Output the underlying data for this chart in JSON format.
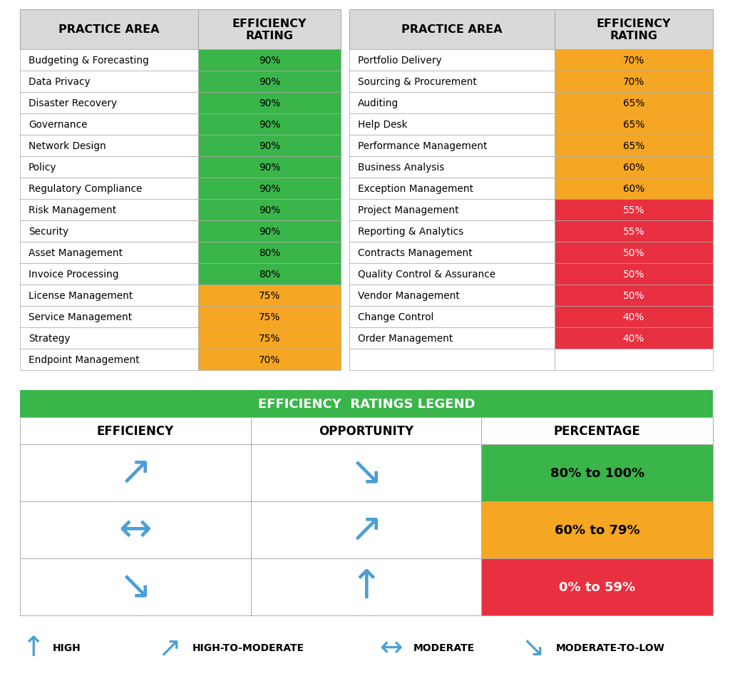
{
  "left_col": [
    [
      "Budgeting & Forecasting",
      "90%",
      "#3ab54a"
    ],
    [
      "Data Privacy",
      "90%",
      "#3ab54a"
    ],
    [
      "Disaster Recovery",
      "90%",
      "#3ab54a"
    ],
    [
      "Governance",
      "90%",
      "#3ab54a"
    ],
    [
      "Network Design",
      "90%",
      "#3ab54a"
    ],
    [
      "Policy",
      "90%",
      "#3ab54a"
    ],
    [
      "Regulatory Compliance",
      "90%",
      "#3ab54a"
    ],
    [
      "Risk Management",
      "90%",
      "#3ab54a"
    ],
    [
      "Security",
      "90%",
      "#3ab54a"
    ],
    [
      "Asset Management",
      "80%",
      "#3ab54a"
    ],
    [
      "Invoice Processing",
      "80%",
      "#3ab54a"
    ],
    [
      "License Management",
      "75%",
      "#f5a623"
    ],
    [
      "Service Management",
      "75%",
      "#f5a623"
    ],
    [
      "Strategy",
      "75%",
      "#f5a623"
    ],
    [
      "Endpoint Management",
      "70%",
      "#f5a623"
    ]
  ],
  "right_col": [
    [
      "Portfolio Delivery",
      "70%",
      "#f5a623"
    ],
    [
      "Sourcing & Procurement",
      "70%",
      "#f5a623"
    ],
    [
      "Auditing",
      "65%",
      "#f5a623"
    ],
    [
      "Help Desk",
      "65%",
      "#f5a623"
    ],
    [
      "Performance Management",
      "65%",
      "#f5a623"
    ],
    [
      "Business Analysis",
      "60%",
      "#f5a623"
    ],
    [
      "Exception Management",
      "60%",
      "#f5a623"
    ],
    [
      "Project Management",
      "55%",
      "#e83040"
    ],
    [
      "Reporting & Analytics",
      "55%",
      "#e83040"
    ],
    [
      "Contracts Management",
      "50%",
      "#e83040"
    ],
    [
      "Quality Control & Assurance",
      "50%",
      "#e83040"
    ],
    [
      "Vendor Management",
      "50%",
      "#e83040"
    ],
    [
      "Change Control",
      "40%",
      "#e83040"
    ],
    [
      "Order Management",
      "40%",
      "#e83040"
    ]
  ],
  "header_bg": "#d9d9d9",
  "col1_header": "PRACTICE AREA",
  "col2_header": "EFFICIENCY\nRATING",
  "col3_header": "PRACTICE AREA",
  "col4_header": "EFFICIENCY\nRATING",
  "legend_title": "EFFICIENCY  RATINGS LEGEND",
  "legend_title_bg": "#3ab54a",
  "legend_col1": "EFFICIENCY",
  "legend_col2": "OPPORTUNITY",
  "legend_col3": "PERCENTAGE",
  "legend_rows": [
    {
      "pct_text": "80% to 100%",
      "pct_color": "#3ab54a",
      "pct_text_color": "black"
    },
    {
      "pct_text": "60% to 79%",
      "pct_color": "#f5a623",
      "pct_text_color": "black"
    },
    {
      "pct_text": "0% to 59%",
      "pct_color": "#e83040",
      "pct_text_color": "white"
    }
  ],
  "arrow_color": "#4a9fd4",
  "bg_color": "white",
  "border_color": "#aaaaaa",
  "n_rows": 15
}
